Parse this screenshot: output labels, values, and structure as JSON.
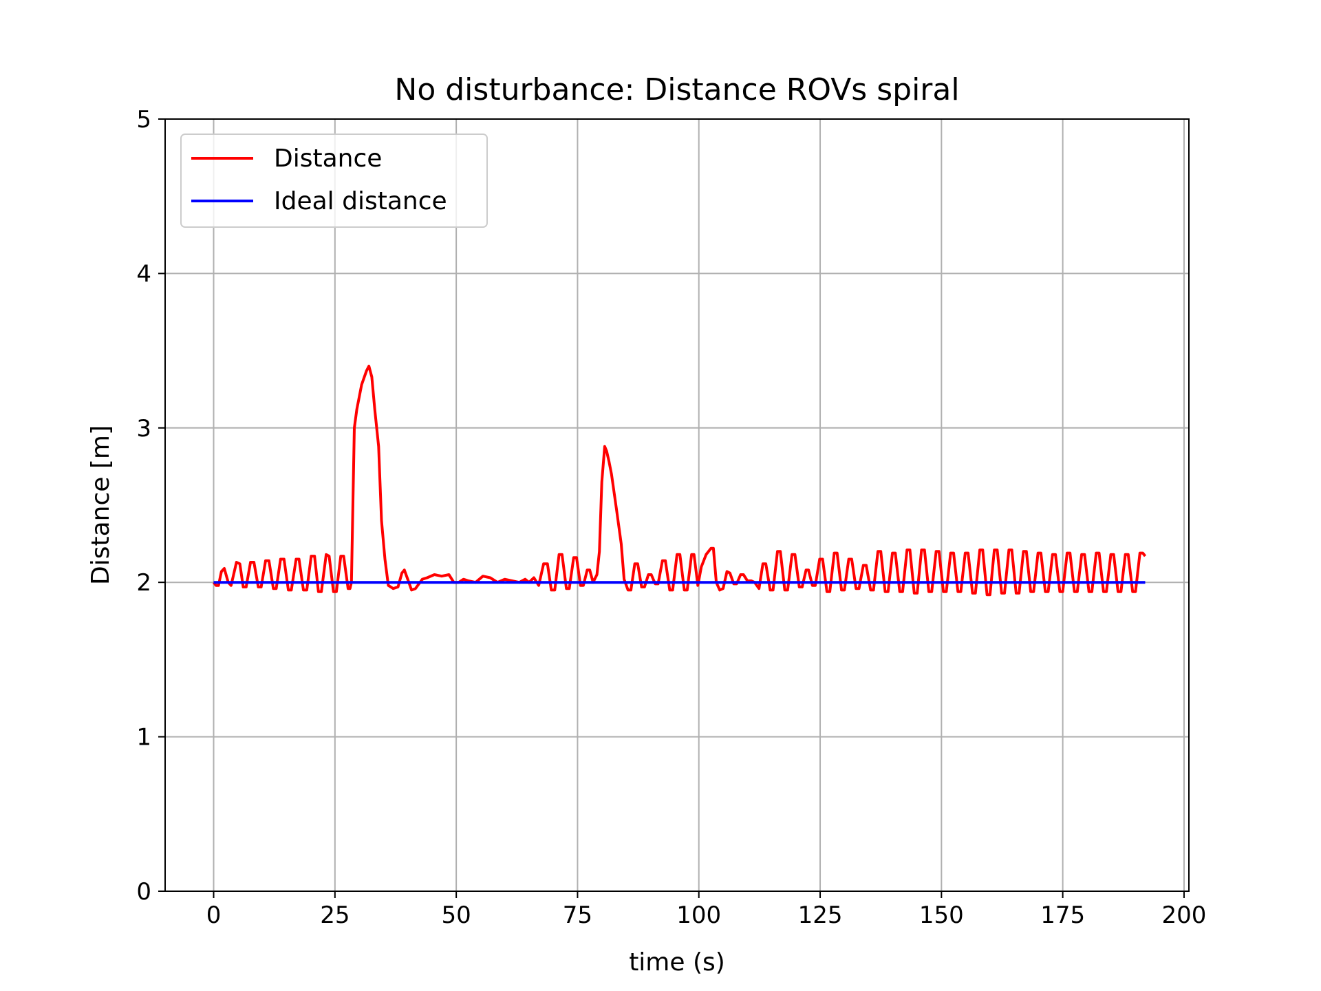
{
  "chart_data": {
    "type": "line",
    "title": "No disturbance: Distance ROVs spiral",
    "xlabel": "time (s)",
    "ylabel": "Distance [m]",
    "xlim": [
      -10,
      201
    ],
    "ylim": [
      0,
      5
    ],
    "xticks": [
      0,
      25,
      50,
      75,
      100,
      125,
      150,
      175,
      200
    ],
    "yticks": [
      0,
      1,
      2,
      3,
      4,
      5
    ],
    "grid": true,
    "legend": "upper-left",
    "series": [
      {
        "name": "Distance",
        "color": "#ff0000",
        "points": [
          [
            0,
            2.0
          ],
          [
            0.5,
            1.98
          ],
          [
            1,
            1.98
          ],
          [
            1.6,
            2.07
          ],
          [
            2.2,
            2.09
          ],
          [
            3,
            2.0
          ],
          [
            3.6,
            1.98
          ],
          [
            4.7,
            2.13
          ],
          [
            5.4,
            2.12
          ],
          [
            6.1,
            1.97
          ],
          [
            6.7,
            1.97
          ],
          [
            7.6,
            2.13
          ],
          [
            8.3,
            2.13
          ],
          [
            9.2,
            1.97
          ],
          [
            9.8,
            1.97
          ],
          [
            10.7,
            2.14
          ],
          [
            11.4,
            2.14
          ],
          [
            12.3,
            1.96
          ],
          [
            12.9,
            1.96
          ],
          [
            13.8,
            2.15
          ],
          [
            14.5,
            2.15
          ],
          [
            15.4,
            1.95
          ],
          [
            16,
            1.95
          ],
          [
            17,
            2.15
          ],
          [
            17.6,
            2.15
          ],
          [
            18.5,
            1.95
          ],
          [
            19.2,
            1.95
          ],
          [
            20.1,
            2.17
          ],
          [
            20.8,
            2.17
          ],
          [
            21.6,
            1.94
          ],
          [
            22.2,
            1.94
          ],
          [
            23.2,
            2.18
          ],
          [
            23.8,
            2.17
          ],
          [
            24.7,
            1.94
          ],
          [
            25.3,
            1.94
          ],
          [
            26.2,
            2.17
          ],
          [
            26.8,
            2.17
          ],
          [
            27.7,
            1.96
          ],
          [
            28.1,
            1.96
          ],
          [
            28.4,
            2.0
          ],
          [
            28.7,
            2.5
          ],
          [
            29,
            3.0
          ],
          [
            29.5,
            3.12
          ],
          [
            30.5,
            3.28
          ],
          [
            31.5,
            3.37
          ],
          [
            32,
            3.4
          ],
          [
            32.6,
            3.33
          ],
          [
            33.2,
            3.12
          ],
          [
            34,
            2.88
          ],
          [
            34.6,
            2.4
          ],
          [
            35.3,
            2.15
          ],
          [
            36,
            1.98
          ],
          [
            37,
            1.96
          ],
          [
            38,
            1.97
          ],
          [
            38.8,
            2.06
          ],
          [
            39.3,
            2.08
          ],
          [
            40,
            2.02
          ],
          [
            40.8,
            1.95
          ],
          [
            41.6,
            1.96
          ],
          [
            43,
            2.02
          ],
          [
            44,
            2.03
          ],
          [
            45.5,
            2.05
          ],
          [
            47,
            2.04
          ],
          [
            48.5,
            2.05
          ],
          [
            49.5,
            2.0
          ],
          [
            50.5,
            2.0
          ],
          [
            51.5,
            2.02
          ],
          [
            52.5,
            2.01
          ],
          [
            54,
            2.0
          ],
          [
            55.5,
            2.04
          ],
          [
            57,
            2.03
          ],
          [
            58.5,
            2.0
          ],
          [
            60,
            2.02
          ],
          [
            61.5,
            2.01
          ],
          [
            63,
            2.0
          ],
          [
            64.2,
            2.02
          ],
          [
            65,
            2.0
          ],
          [
            66,
            2.03
          ],
          [
            67,
            1.98
          ],
          [
            68,
            2.12
          ],
          [
            68.8,
            2.12
          ],
          [
            69.6,
            1.95
          ],
          [
            70.3,
            1.95
          ],
          [
            71.2,
            2.18
          ],
          [
            71.8,
            2.18
          ],
          [
            72.7,
            1.96
          ],
          [
            73.3,
            1.96
          ],
          [
            74.2,
            2.16
          ],
          [
            74.8,
            2.16
          ],
          [
            75.6,
            1.98
          ],
          [
            76.2,
            1.98
          ],
          [
            77,
            2.08
          ],
          [
            77.5,
            2.08
          ],
          [
            78.2,
            2.0
          ],
          [
            79,
            2.05
          ],
          [
            79.5,
            2.2
          ],
          [
            80,
            2.65
          ],
          [
            80.6,
            2.88
          ],
          [
            81,
            2.85
          ],
          [
            81.5,
            2.78
          ],
          [
            82,
            2.7
          ],
          [
            83,
            2.48
          ],
          [
            84,
            2.25
          ],
          [
            84.6,
            2.02
          ],
          [
            85.4,
            1.95
          ],
          [
            86,
            1.95
          ],
          [
            86.8,
            2.12
          ],
          [
            87.4,
            2.12
          ],
          [
            88.2,
            1.97
          ],
          [
            88.8,
            1.97
          ],
          [
            89.6,
            2.05
          ],
          [
            90.2,
            2.05
          ],
          [
            91,
            1.99
          ],
          [
            91.6,
            1.99
          ],
          [
            92.5,
            2.14
          ],
          [
            93.1,
            2.14
          ],
          [
            94,
            1.95
          ],
          [
            94.6,
            1.95
          ],
          [
            95.5,
            2.18
          ],
          [
            96.1,
            2.18
          ],
          [
            97,
            1.95
          ],
          [
            97.6,
            1.95
          ],
          [
            98.5,
            2.18
          ],
          [
            99,
            2.18
          ],
          [
            99.8,
            1.98
          ],
          [
            100.5,
            2.1
          ],
          [
            101.5,
            2.18
          ],
          [
            102.5,
            2.22
          ],
          [
            103,
            2.22
          ],
          [
            103.6,
            2.0
          ],
          [
            104.3,
            1.95
          ],
          [
            105,
            1.96
          ],
          [
            105.8,
            2.07
          ],
          [
            106.4,
            2.06
          ],
          [
            107.2,
            1.99
          ],
          [
            107.8,
            1.99
          ],
          [
            108.6,
            2.05
          ],
          [
            109.2,
            2.05
          ],
          [
            110,
            2.01
          ],
          [
            110.8,
            2.01
          ],
          [
            111.5,
            2.0
          ],
          [
            112.4,
            1.96
          ],
          [
            113.2,
            2.12
          ],
          [
            113.8,
            2.12
          ],
          [
            114.7,
            1.95
          ],
          [
            115.3,
            1.95
          ],
          [
            116.2,
            2.2
          ],
          [
            116.8,
            2.2
          ],
          [
            117.7,
            1.95
          ],
          [
            118.3,
            1.95
          ],
          [
            119.2,
            2.18
          ],
          [
            119.8,
            2.18
          ],
          [
            120.7,
            1.97
          ],
          [
            121.3,
            1.97
          ],
          [
            122.1,
            2.08
          ],
          [
            122.6,
            2.08
          ],
          [
            123.4,
            1.98
          ],
          [
            124,
            1.98
          ],
          [
            124.9,
            2.15
          ],
          [
            125.5,
            2.15
          ],
          [
            126.4,
            1.94
          ],
          [
            127,
            1.94
          ],
          [
            127.9,
            2.19
          ],
          [
            128.5,
            2.19
          ],
          [
            129.4,
            1.95
          ],
          [
            130,
            1.95
          ],
          [
            130.9,
            2.15
          ],
          [
            131.5,
            2.15
          ],
          [
            132.4,
            1.96
          ],
          [
            133,
            1.96
          ],
          [
            133.9,
            2.11
          ],
          [
            134.5,
            2.11
          ],
          [
            135.4,
            1.95
          ],
          [
            136,
            1.95
          ],
          [
            136.9,
            2.2
          ],
          [
            137.5,
            2.2
          ],
          [
            138.4,
            1.94
          ],
          [
            139,
            1.94
          ],
          [
            139.9,
            2.19
          ],
          [
            140.5,
            2.19
          ],
          [
            141.4,
            1.94
          ],
          [
            142,
            1.94
          ],
          [
            142.9,
            2.21
          ],
          [
            143.5,
            2.21
          ],
          [
            144.4,
            1.93
          ],
          [
            145,
            1.93
          ],
          [
            145.9,
            2.21
          ],
          [
            146.5,
            2.21
          ],
          [
            147.4,
            1.94
          ],
          [
            148,
            1.94
          ],
          [
            148.9,
            2.2
          ],
          [
            149.5,
            2.2
          ],
          [
            150.4,
            1.94
          ],
          [
            151,
            1.94
          ],
          [
            151.9,
            2.19
          ],
          [
            152.5,
            2.19
          ],
          [
            153.4,
            1.94
          ],
          [
            154,
            1.94
          ],
          [
            154.9,
            2.19
          ],
          [
            155.5,
            2.19
          ],
          [
            156.4,
            1.93
          ],
          [
            157,
            1.93
          ],
          [
            157.9,
            2.21
          ],
          [
            158.5,
            2.21
          ],
          [
            159.4,
            1.92
          ],
          [
            160,
            1.92
          ],
          [
            160.9,
            2.21
          ],
          [
            161.5,
            2.21
          ],
          [
            162.4,
            1.93
          ],
          [
            163,
            1.93
          ],
          [
            163.9,
            2.21
          ],
          [
            164.5,
            2.21
          ],
          [
            165.4,
            1.93
          ],
          [
            166,
            1.93
          ],
          [
            166.9,
            2.2
          ],
          [
            167.5,
            2.2
          ],
          [
            168.4,
            1.94
          ],
          [
            169,
            1.94
          ],
          [
            169.9,
            2.19
          ],
          [
            170.5,
            2.19
          ],
          [
            171.4,
            1.94
          ],
          [
            172,
            1.94
          ],
          [
            172.9,
            2.18
          ],
          [
            173.5,
            2.18
          ],
          [
            174.4,
            1.94
          ],
          [
            175,
            1.94
          ],
          [
            175.9,
            2.19
          ],
          [
            176.5,
            2.19
          ],
          [
            177.4,
            1.94
          ],
          [
            178,
            1.94
          ],
          [
            178.9,
            2.18
          ],
          [
            179.5,
            2.18
          ],
          [
            180.4,
            1.94
          ],
          [
            181,
            1.94
          ],
          [
            181.9,
            2.19
          ],
          [
            182.5,
            2.19
          ],
          [
            183.4,
            1.94
          ],
          [
            184,
            1.94
          ],
          [
            184.9,
            2.18
          ],
          [
            185.5,
            2.18
          ],
          [
            186.4,
            1.94
          ],
          [
            187,
            1.94
          ],
          [
            187.9,
            2.18
          ],
          [
            188.5,
            2.18
          ],
          [
            189.4,
            1.94
          ],
          [
            190,
            1.94
          ],
          [
            190.9,
            2.19
          ],
          [
            191.5,
            2.19
          ],
          [
            192,
            2.17
          ]
        ]
      },
      {
        "name": "Ideal distance",
        "color": "#0000ff",
        "points": [
          [
            0,
            2.0
          ],
          [
            192,
            2.0
          ]
        ]
      }
    ]
  }
}
